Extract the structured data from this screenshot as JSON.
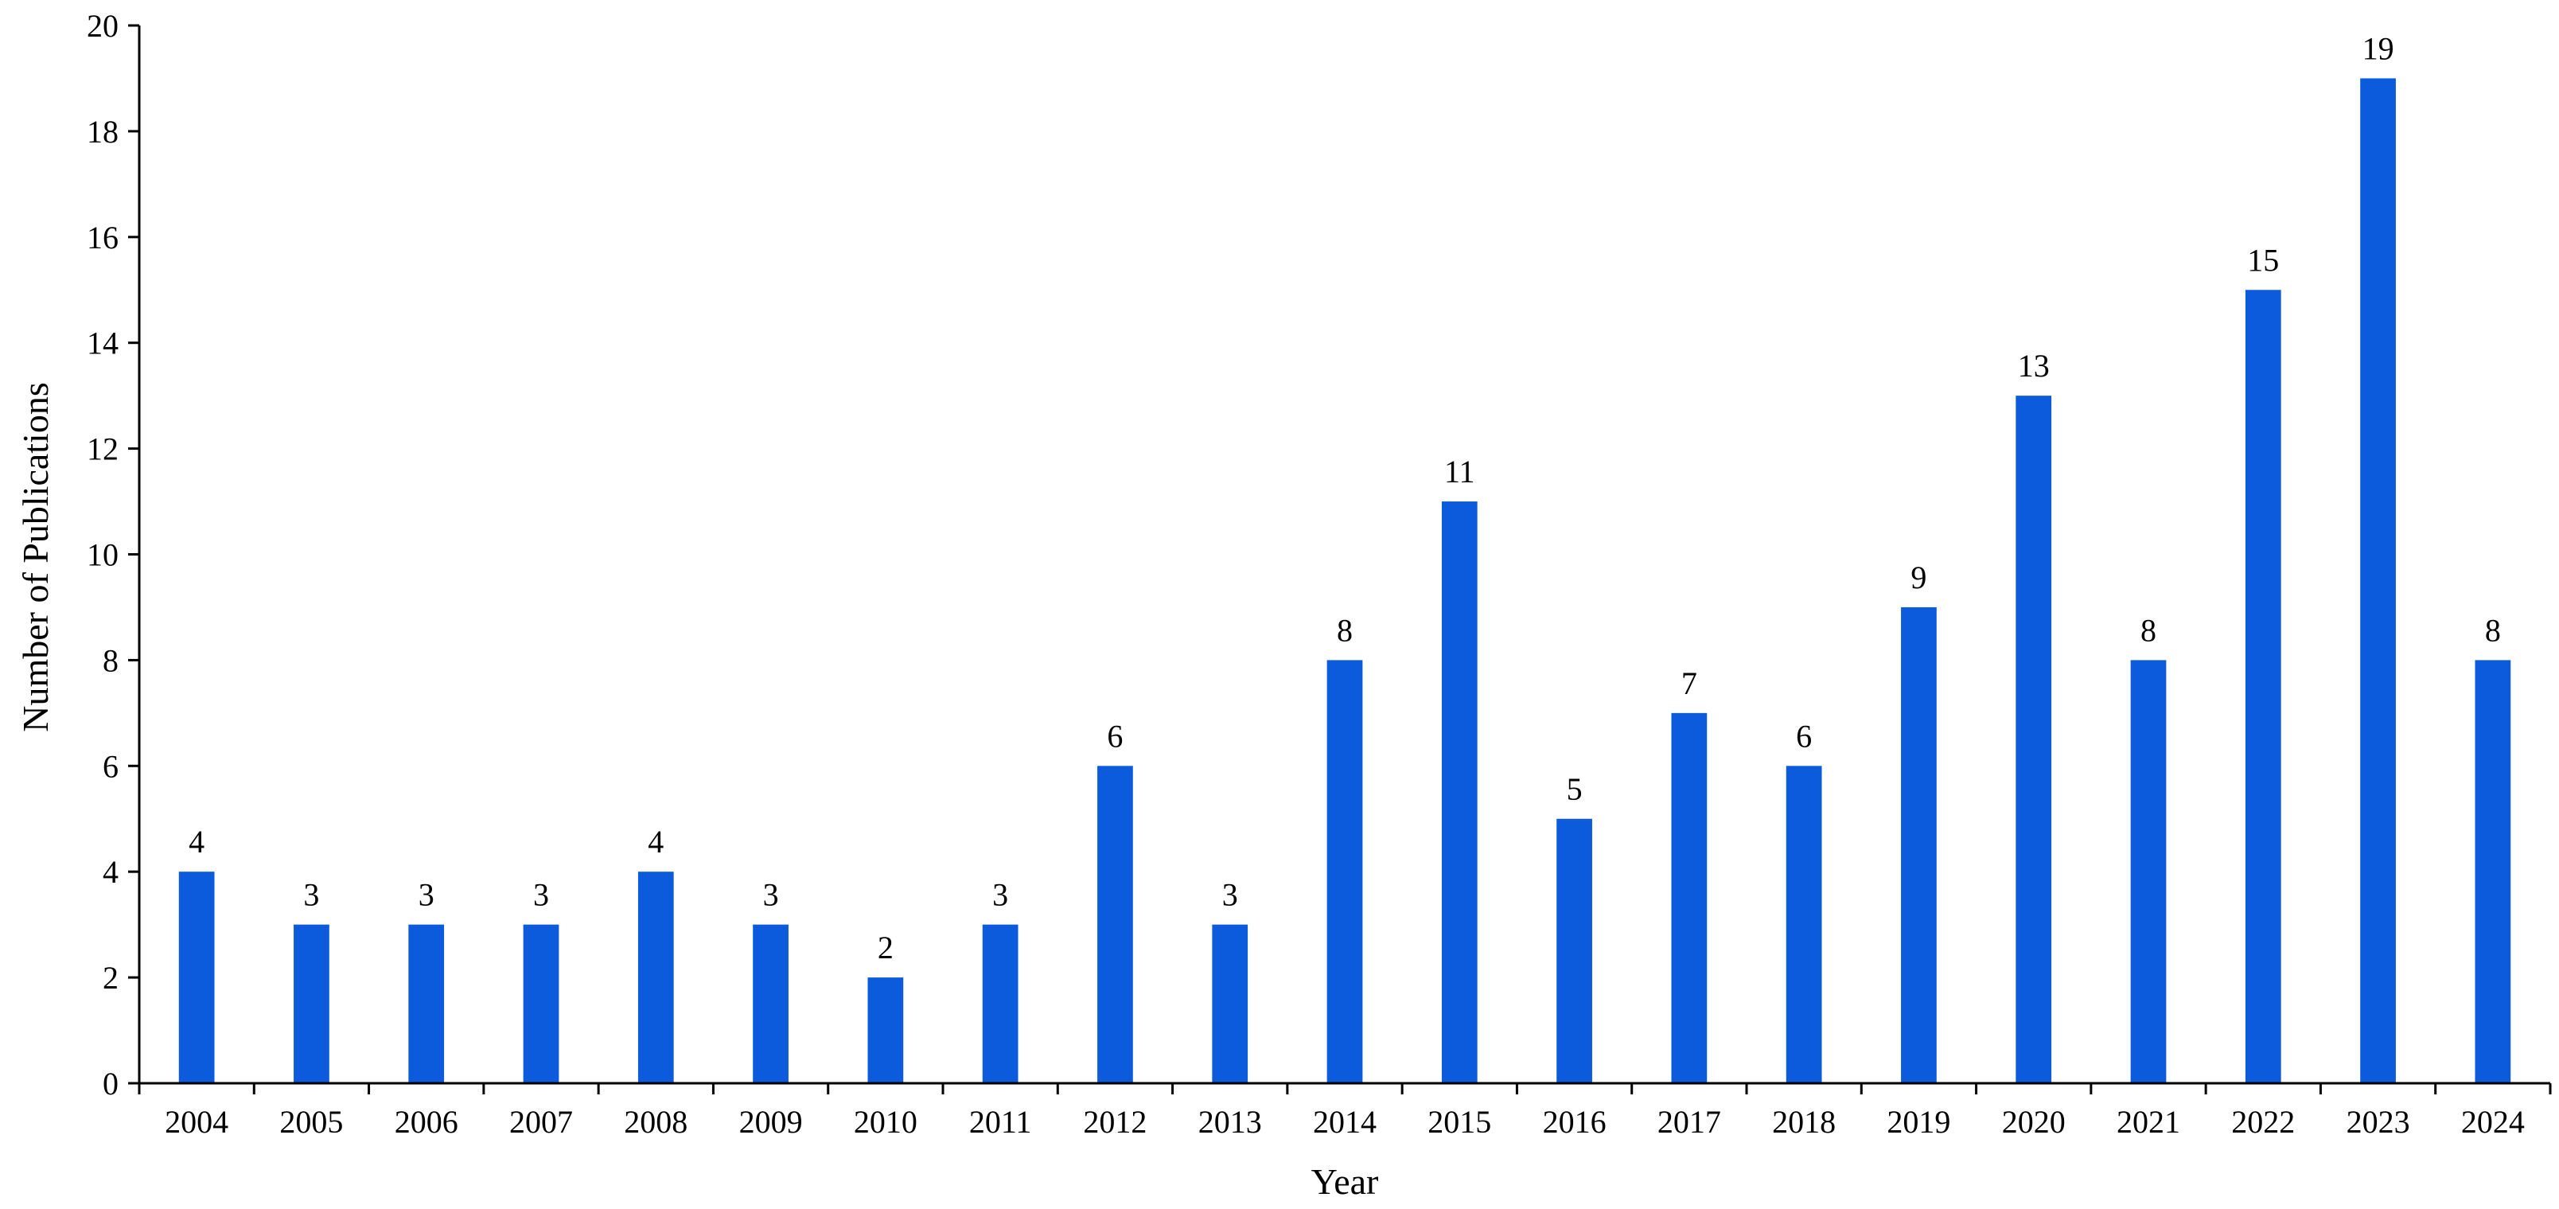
{
  "chart_data": {
    "type": "bar",
    "title": "",
    "xlabel": "Year",
    "ylabel": "Number of Publications",
    "ylim": [
      0,
      20
    ],
    "yticks": [
      0,
      2,
      4,
      6,
      8,
      10,
      12,
      14,
      16,
      18,
      20
    ],
    "grid": false,
    "legend": "none",
    "bar_color": "#0b5bdc",
    "categories": [
      "2004",
      "2005",
      "2006",
      "2007",
      "2008",
      "2009",
      "2010",
      "2011",
      "2012",
      "2013",
      "2014",
      "2015",
      "2016",
      "2017",
      "2018",
      "2019",
      "2020",
      "2021",
      "2022",
      "2023",
      "2024"
    ],
    "values": [
      4,
      3,
      3,
      3,
      4,
      3,
      2,
      3,
      6,
      3,
      8,
      11,
      5,
      7,
      6,
      9,
      13,
      8,
      15,
      19,
      8
    ],
    "data_labels": [
      "4",
      "3",
      "3",
      "3",
      "4",
      "3",
      "2",
      "3",
      "6",
      "3",
      "8",
      "11",
      "5",
      "7",
      "6",
      "9",
      "13",
      "8",
      "15",
      "19",
      "8"
    ]
  }
}
